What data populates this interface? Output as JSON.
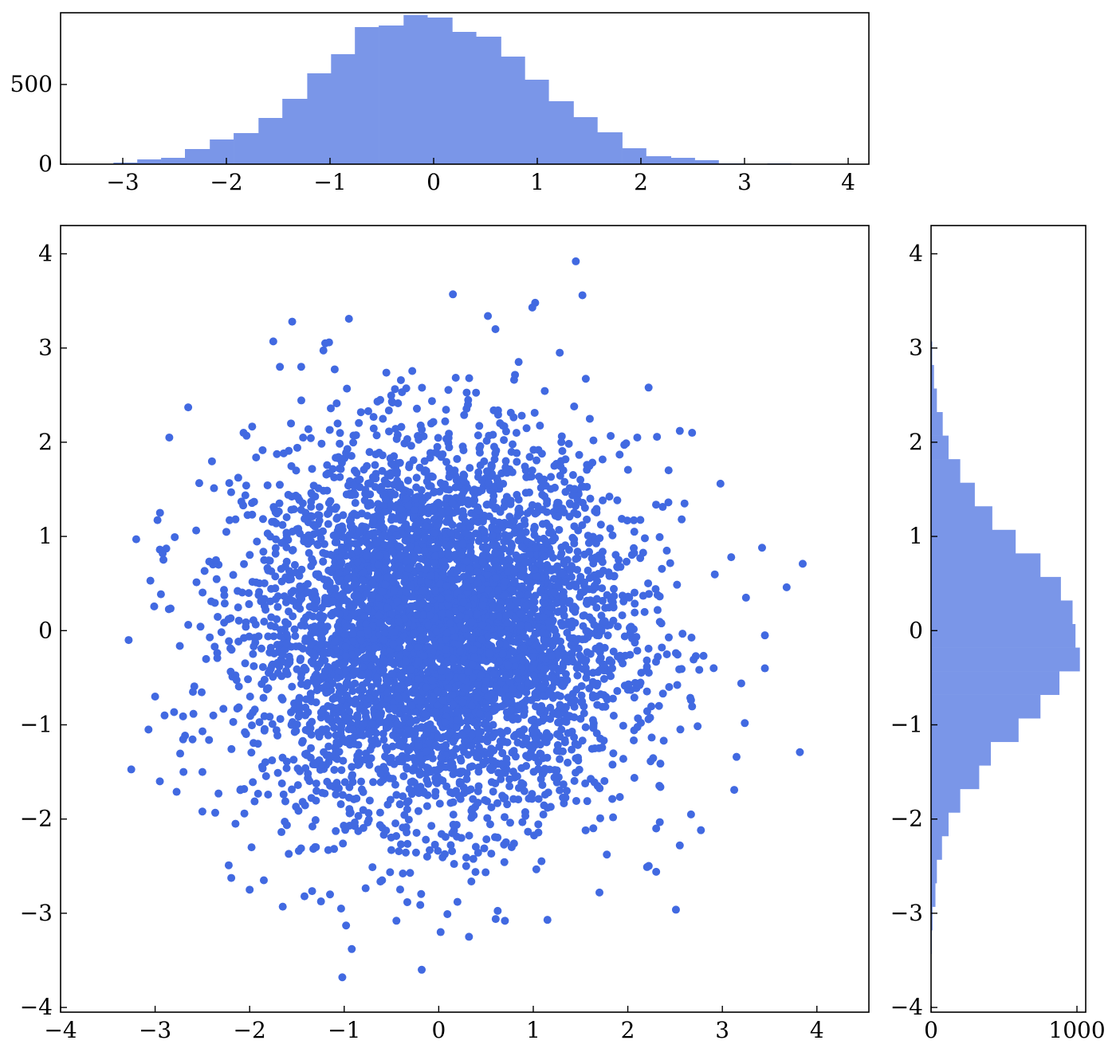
{
  "chart_data": [
    {
      "panel": "top-marginal",
      "type": "bar",
      "orientation": "vertical",
      "xlim": [
        -3.6,
        4.2
      ],
      "ylim": [
        0,
        950
      ],
      "x_ticks": [
        -3,
        -2,
        -1,
        0,
        1,
        2,
        3,
        4
      ],
      "x_tick_labels": [
        "−3",
        "−2",
        "−1",
        "0",
        "1",
        "2",
        "3",
        "4"
      ],
      "y_ticks": [
        0,
        500
      ],
      "y_tick_labels": [
        "0",
        "500"
      ],
      "bin_edges": [
        -3.09,
        -2.86,
        -2.63,
        -2.4,
        -2.16,
        -1.93,
        -1.69,
        -1.46,
        -1.22,
        -0.99,
        -0.76,
        -0.53,
        -0.29,
        -0.06,
        0.18,
        0.41,
        0.65,
        0.88,
        1.11,
        1.35,
        1.58,
        1.82,
        2.05,
        2.29,
        2.52,
        2.75,
        2.99,
        3.22,
        3.45
      ],
      "values": [
        10,
        30,
        40,
        95,
        155,
        195,
        290,
        410,
        570,
        690,
        860,
        870,
        935,
        920,
        830,
        800,
        675,
        530,
        395,
        295,
        200,
        100,
        50,
        40,
        25,
        5,
        2,
        5
      ],
      "color": "#7a96e8"
    },
    {
      "panel": "main-scatter",
      "type": "scatter",
      "xlim": [
        -4,
        4.55
      ],
      "ylim": [
        -4.05,
        4.3
      ],
      "x_ticks": [
        -4,
        -3,
        -2,
        -1,
        0,
        1,
        2,
        3,
        4
      ],
      "x_tick_labels": [
        "−4",
        "−3",
        "−2",
        "−1",
        "0",
        "1",
        "2",
        "3",
        "4"
      ],
      "y_ticks": [
        -4,
        -3,
        -2,
        -1,
        0,
        1,
        2,
        3,
        4
      ],
      "y_tick_labels": [
        "−4",
        "−3",
        "−2",
        "−1",
        "0",
        "1",
        "2",
        "3",
        "4"
      ],
      "color": "#4169e1",
      "distribution": "bivariate standard normal, n≈10000",
      "points": [
        [
          1.45,
          3.92
        ],
        [
          0.15,
          3.57
        ],
        [
          1.52,
          3.56
        ],
        [
          1.02,
          3.48
        ],
        [
          0.99,
          3.43
        ],
        [
          -0.95,
          3.31
        ],
        [
          -1.55,
          3.28
        ],
        [
          0.52,
          3.34
        ],
        [
          -1.75,
          3.07
        ],
        [
          -1.16,
          3.06
        ],
        [
          -1.2,
          3.05
        ],
        [
          0.6,
          3.2
        ],
        [
          -1.2,
          3.05
        ],
        [
          1.28,
          2.95
        ],
        [
          -1.68,
          2.8
        ],
        [
          -3.28,
          -0.1
        ],
        [
          3.85,
          0.71
        ],
        [
          3.68,
          0.46
        ],
        [
          3.82,
          -1.29
        ],
        [
          3.45,
          -0.05
        ],
        [
          3.45,
          -0.4
        ],
        [
          3.42,
          0.88
        ],
        [
          3.25,
          0.35
        ],
        [
          3.2,
          -0.56
        ],
        [
          3.15,
          -1.34
        ],
        [
          -3.2,
          0.97
        ],
        [
          -3.05,
          0.53
        ],
        [
          -2.95,
          -1.6
        ],
        [
          -2.92,
          0.82
        ],
        [
          -2.85,
          2.05
        ],
        [
          -2.65,
          2.37
        ],
        [
          -2.5,
          -1.92
        ],
        [
          -2.15,
          -2.05
        ],
        [
          -1.98,
          -2.3
        ],
        [
          -2.0,
          -2.75
        ],
        [
          -1.85,
          -2.65
        ],
        [
          -1.65,
          -2.93
        ],
        [
          -1.42,
          -2.82
        ],
        [
          -1.15,
          -2.8
        ],
        [
          -1.02,
          -3.68
        ],
        [
          -0.98,
          -3.13
        ],
        [
          -0.92,
          -3.38
        ],
        [
          -0.18,
          -3.6
        ],
        [
          0.02,
          -3.2
        ],
        [
          0.32,
          -3.25
        ],
        [
          0.7,
          -3.08
        ],
        [
          1.15,
          -3.07
        ],
        [
          2.3,
          -2.56
        ],
        [
          2.3,
          -2.1
        ],
        [
          2.55,
          -2.28
        ],
        [
          1.7,
          -2.78
        ],
        [
          2.22,
          2.58
        ],
        [
          2.68,
          2.1
        ],
        [
          2.98,
          1.56
        ],
        [
          2.6,
          1.35
        ],
        [
          2.55,
          2.12
        ],
        [
          2.1,
          2.05
        ],
        [
          -3.07,
          -1.05
        ],
        [
          -2.9,
          -0.9
        ],
        [
          -2.7,
          -1.5
        ],
        [
          -2.6,
          -0.65
        ],
        [
          -3.0,
          -0.7
        ]
      ],
      "dense_core_note": "remaining points are densely sampled from the same normal distribution"
    },
    {
      "panel": "right-marginal",
      "type": "bar",
      "orientation": "horizontal",
      "xlim": [
        0,
        1060
      ],
      "ylim": [
        -4.05,
        4.3
      ],
      "x_ticks": [
        0,
        1000
      ],
      "x_tick_labels": [
        "0",
        "1000"
      ],
      "y_ticks": [
        -4,
        -3,
        -2,
        -1,
        0,
        1,
        2,
        3,
        4
      ],
      "y_tick_labels": [
        "−4",
        "−3",
        "−2",
        "−1",
        "0",
        "1",
        "2",
        "3",
        "4"
      ],
      "bin_edges": [
        -3.68,
        -3.43,
        -3.18,
        -2.93,
        -2.68,
        -2.43,
        -2.18,
        -1.93,
        -1.68,
        -1.43,
        -1.18,
        -0.93,
        -0.68,
        -0.43,
        -0.18,
        0.07,
        0.32,
        0.57,
        0.82,
        1.07,
        1.32,
        1.57,
        1.82,
        2.07,
        2.32,
        2.57,
        2.82,
        3.07,
        3.32
      ],
      "values": [
        2,
        5,
        10,
        30,
        40,
        75,
        120,
        200,
        330,
        410,
        600,
        750,
        880,
        1020,
        990,
        970,
        890,
        750,
        580,
        420,
        300,
        200,
        120,
        80,
        40,
        20,
        8,
        3
      ],
      "color": "#7a96e8"
    }
  ]
}
